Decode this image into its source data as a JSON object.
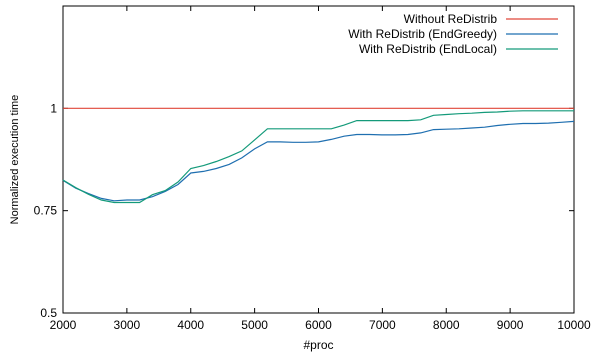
{
  "chart_data": {
    "type": "line",
    "xlabel": "#proc",
    "ylabel": "Normalized execution time",
    "xlim": [
      2000,
      10000
    ],
    "ylim": [
      0.5,
      1.25
    ],
    "xticks": [
      2000,
      3000,
      4000,
      5000,
      6000,
      7000,
      8000,
      9000,
      10000
    ],
    "yticks": [
      0.5,
      0.75,
      1
    ],
    "ytick_labels": [
      "0.5",
      "0.75",
      "1"
    ],
    "grid": false,
    "legend_position": "top-right",
    "series": [
      {
        "name": "Without ReDistrib",
        "color": "#e0473a",
        "x": [
          2000,
          10000
        ],
        "y": [
          1.0,
          1.0
        ]
      },
      {
        "name": "With ReDistrib (EndGreedy)",
        "color": "#1f6fb0",
        "x": [
          2000,
          2200,
          2400,
          2600,
          2800,
          3000,
          3200,
          3400,
          3600,
          3800,
          4000,
          4200,
          4400,
          4600,
          4800,
          5000,
          5200,
          5400,
          5600,
          5800,
          6000,
          6200,
          6400,
          6600,
          6800,
          7000,
          7200,
          7400,
          7600,
          7800,
          8000,
          8200,
          8400,
          8600,
          8800,
          9000,
          9200,
          9400,
          9600,
          9800,
          10000
        ],
        "y": [
          0.824,
          0.805,
          0.792,
          0.78,
          0.774,
          0.776,
          0.776,
          0.784,
          0.797,
          0.814,
          0.842,
          0.846,
          0.853,
          0.863,
          0.879,
          0.901,
          0.918,
          0.918,
          0.917,
          0.917,
          0.918,
          0.924,
          0.932,
          0.936,
          0.936,
          0.935,
          0.935,
          0.936,
          0.94,
          0.948,
          0.949,
          0.95,
          0.952,
          0.954,
          0.958,
          0.961,
          0.963,
          0.963,
          0.964,
          0.966,
          0.968
        ]
      },
      {
        "name": "With ReDistrib (EndLocal)",
        "color": "#149a7a",
        "x": [
          2000,
          2200,
          2400,
          2600,
          2800,
          3000,
          3200,
          3400,
          3600,
          3800,
          4000,
          4200,
          4400,
          4600,
          4800,
          5000,
          5200,
          5400,
          5600,
          5800,
          6000,
          6200,
          6400,
          6600,
          6800,
          7000,
          7200,
          7400,
          7600,
          7800,
          8000,
          8200,
          8400,
          8600,
          8800,
          9000,
          9200,
          9400,
          9600,
          9800,
          10000
        ],
        "y": [
          0.825,
          0.806,
          0.79,
          0.776,
          0.77,
          0.77,
          0.77,
          0.789,
          0.799,
          0.82,
          0.853,
          0.86,
          0.87,
          0.882,
          0.896,
          0.923,
          0.95,
          0.95,
          0.95,
          0.95,
          0.95,
          0.95,
          0.959,
          0.97,
          0.97,
          0.97,
          0.97,
          0.97,
          0.972,
          0.983,
          0.985,
          0.987,
          0.988,
          0.99,
          0.991,
          0.993,
          0.994,
          0.994,
          0.994,
          0.994,
          0.994
        ]
      }
    ]
  }
}
